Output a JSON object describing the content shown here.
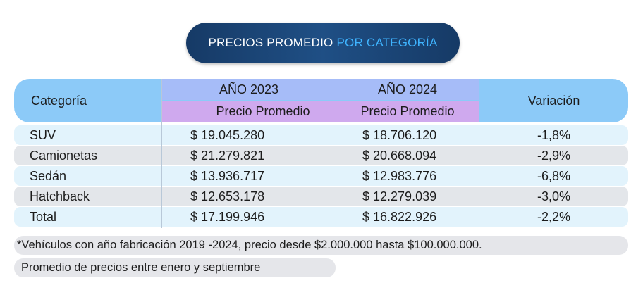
{
  "title": {
    "part1": "PRECIOS  PROMEDIO",
    "part2": "POR CATEGORÍA"
  },
  "colors": {
    "title_bg": "#1f4f85",
    "title_highlight": "#3fb4ff",
    "header": "#8ccaf8",
    "year_header": "#a6bcf8",
    "sub_header": "#cfa9ee",
    "row_light": "#e2f3fc",
    "row_gray": "#e3e6ea"
  },
  "chart_data": {
    "type": "table",
    "title": "PRECIOS  PROMEDIO POR CATEGORÍA",
    "columns": {
      "category": "Categoría",
      "year_2023": "AÑO 2023",
      "year_2024": "AÑO 2024",
      "sub_2023": "Precio Promedio",
      "sub_2024": "Precio Promedio",
      "variation": "Variación"
    },
    "rows": [
      {
        "category": "SUV",
        "p2023": "$ 19.045.280",
        "p2024": "$ 18.706.120",
        "variation": "-1,8%"
      },
      {
        "category": "Camionetas",
        "p2023": "$ 21.279.821",
        "p2024": "$ 20.668.094",
        "variation": "-2,9%"
      },
      {
        "category": "Sedán",
        "p2023": "$ 13.936.717",
        "p2024": "$ 12.983.776",
        "variation": "-6,8%"
      },
      {
        "category": "Hatchback",
        "p2023": "$ 12.653.178",
        "p2024": "$ 12.279.039",
        "variation": "-3,0%"
      },
      {
        "category": "Total",
        "p2023": "$ 17.199.946",
        "p2024": "$ 16.822.926",
        "variation": "-2,2%"
      }
    ]
  },
  "notes": {
    "line1": "*Vehículos con año fabricación 2019 -2024, precio desde $2.000.000 hasta $100.000.000.",
    "line2": "Promedio de precios entre enero y septiembre"
  }
}
